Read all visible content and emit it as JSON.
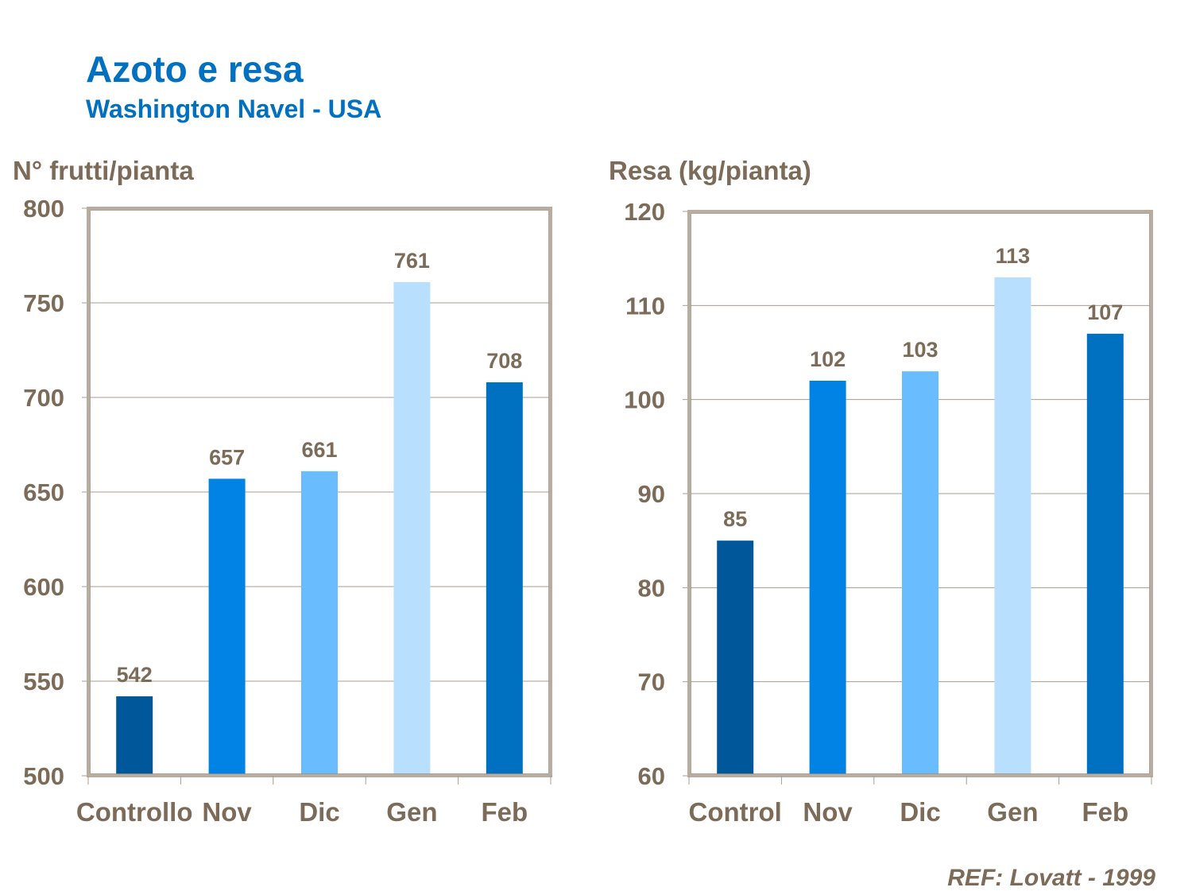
{
  "header": {
    "title": "Azoto e resa",
    "subtitle": "Washington Navel - USA"
  },
  "reference": "REF: Lovatt - 1999",
  "colors": {
    "title": "#0070c0",
    "text": "#7b6b58",
    "frame": "#b8ada0",
    "grid": "#a89c8e",
    "bars": [
      "#00589b",
      "#0083e4",
      "#69bdff",
      "#b8dffd",
      "#0070c0"
    ]
  },
  "chart_data": [
    {
      "type": "bar",
      "title": "",
      "ylabel": "N° frutti/pianta",
      "xlabel": "",
      "categories": [
        "Controllo",
        "Nov",
        "Dic",
        "Gen",
        "Feb"
      ],
      "values": [
        542,
        657,
        661,
        761,
        708
      ],
      "data_labels": [
        "542",
        "657",
        "661",
        "761",
        "708"
      ],
      "ylim": [
        500,
        800
      ],
      "yticks": [
        500,
        550,
        600,
        650,
        700,
        750,
        800
      ],
      "ytick_labels": [
        "500",
        "550",
        "600",
        "650",
        "700",
        "750",
        "800"
      ],
      "grid": true,
      "legend": "none"
    },
    {
      "type": "bar",
      "title": "",
      "ylabel": "Resa (kg/pianta)",
      "xlabel": "",
      "categories": [
        "Control",
        "Nov",
        "Dic",
        "Gen",
        "Feb"
      ],
      "values": [
        85,
        102,
        103,
        113,
        107
      ],
      "data_labels": [
        "85",
        "102",
        "103",
        "113",
        "107"
      ],
      "ylim": [
        60,
        120
      ],
      "yticks": [
        60,
        70,
        80,
        90,
        100,
        110,
        120
      ],
      "ytick_labels": [
        "60",
        "70",
        "80",
        "90",
        "100",
        "110",
        "120"
      ],
      "grid": true,
      "legend": "none"
    }
  ]
}
